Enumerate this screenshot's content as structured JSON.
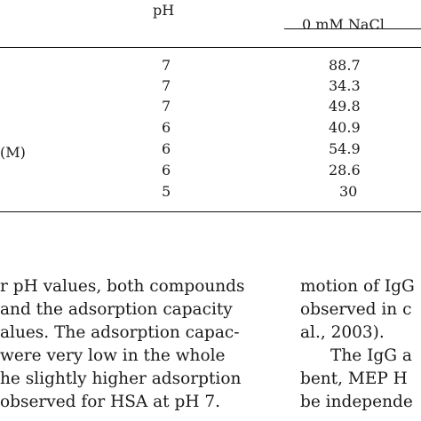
{
  "table": {
    "header": {
      "ph": "pH",
      "nacl": "0 mM NaCl"
    },
    "row_stub_label": "(M)",
    "rows": [
      {
        "ph": "7",
        "value": "88.7"
      },
      {
        "ph": "7",
        "value": "34.3"
      },
      {
        "ph": "7",
        "value": "49.8"
      },
      {
        "ph": "6",
        "value": "40.9"
      },
      {
        "ph": "6",
        "value": "54.9"
      },
      {
        "ph": "6",
        "value": "28.6"
      },
      {
        "ph": "5",
        "value": "30"
      }
    ]
  },
  "left_column": {
    "lines": [
      "r pH values, both compounds",
      "and the adsorption capacity",
      "alues. The adsorption capac-",
      "were very low in the whole",
      "he slightly higher adsorption",
      "observed for HSA at pH 7."
    ]
  },
  "right_column": {
    "lines": [
      "motion of IgG",
      "observed in c",
      "al., 2003).",
      "The IgG a",
      "bent, MEP H",
      "be independe"
    ]
  }
}
